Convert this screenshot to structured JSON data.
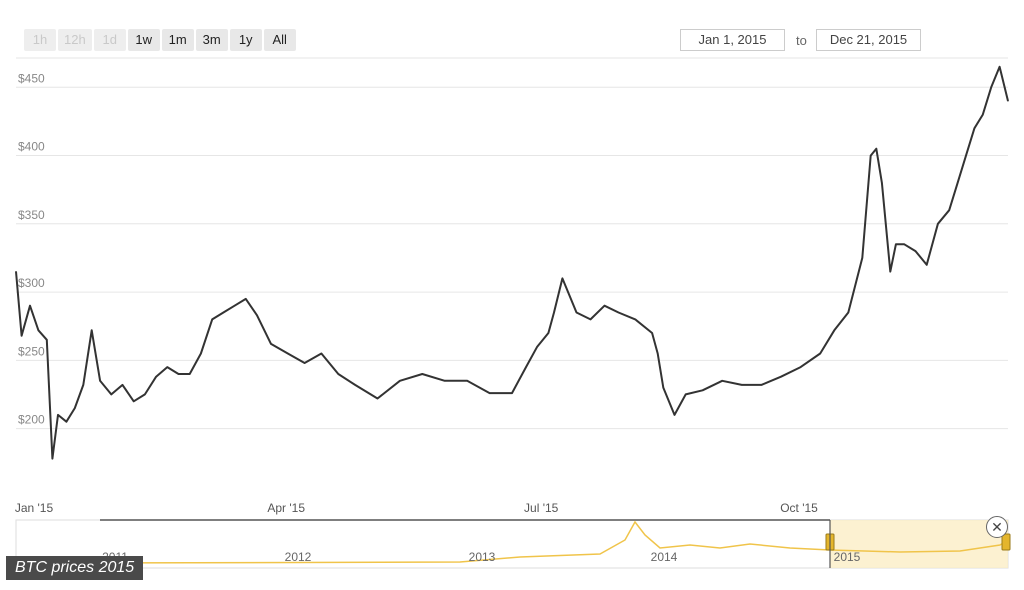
{
  "range_selector": {
    "buttons": [
      {
        "label": "1h",
        "enabled": false
      },
      {
        "label": "12h",
        "enabled": false
      },
      {
        "label": "1d",
        "enabled": false
      },
      {
        "label": "1w",
        "enabled": true
      },
      {
        "label": "1m",
        "enabled": true
      },
      {
        "label": "3m",
        "enabled": true
      },
      {
        "label": "1y",
        "enabled": true
      },
      {
        "label": "All",
        "enabled": true
      }
    ],
    "from_date": "Jan 1, 2015",
    "to_label": "to",
    "to_date": "Dec 21, 2015"
  },
  "caption": "BTC prices 2015",
  "close_icon": "close-circle-icon",
  "colors": {
    "line": "#333333",
    "navigator": "#f0c44a",
    "navigator_fill": "#fbeec6",
    "grid": "#e6e6e6"
  },
  "chart_data": {
    "type": "line",
    "title": "",
    "xlabel": "",
    "ylabel": "",
    "x_range": [
      "2015-01-01",
      "2015-12-21"
    ],
    "ylim": [
      155,
      470
    ],
    "y_ticks": [
      200,
      250,
      300,
      350,
      400,
      450
    ],
    "y_tick_labels": [
      "$200",
      "$250",
      "$300",
      "$350",
      "$400",
      "$450"
    ],
    "x_ticks": [
      "2015-01-01",
      "2015-04-01",
      "2015-07-01",
      "2015-10-01"
    ],
    "x_tick_labels": [
      "Jan '15",
      "Apr '15",
      "Jul '15",
      "Oct '15"
    ],
    "grid": true,
    "series": [
      {
        "x": [
          "2015-01-01",
          "2015-01-03",
          "2015-01-06",
          "2015-01-09",
          "2015-01-12",
          "2015-01-14",
          "2015-01-16",
          "2015-01-19",
          "2015-01-22",
          "2015-01-25",
          "2015-01-28",
          "2015-01-31",
          "2015-02-04",
          "2015-02-08",
          "2015-02-12",
          "2015-02-16",
          "2015-02-20",
          "2015-02-24",
          "2015-02-28",
          "2015-03-04",
          "2015-03-08",
          "2015-03-12",
          "2015-03-16",
          "2015-03-20",
          "2015-03-24",
          "2015-03-28",
          "2015-04-02",
          "2015-04-08",
          "2015-04-14",
          "2015-04-20",
          "2015-04-26",
          "2015-05-02",
          "2015-05-10",
          "2015-05-18",
          "2015-05-26",
          "2015-06-03",
          "2015-06-11",
          "2015-06-19",
          "2015-06-27",
          "2015-07-02",
          "2015-07-06",
          "2015-07-10",
          "2015-07-12",
          "2015-07-15",
          "2015-07-20",
          "2015-07-25",
          "2015-07-30",
          "2015-08-04",
          "2015-08-10",
          "2015-08-16",
          "2015-08-18",
          "2015-08-20",
          "2015-08-24",
          "2015-08-28",
          "2015-09-03",
          "2015-09-10",
          "2015-09-17",
          "2015-09-24",
          "2015-10-01",
          "2015-10-08",
          "2015-10-15",
          "2015-10-20",
          "2015-10-25",
          "2015-10-30",
          "2015-11-02",
          "2015-11-04",
          "2015-11-06",
          "2015-11-09",
          "2015-11-11",
          "2015-11-14",
          "2015-11-18",
          "2015-11-22",
          "2015-11-26",
          "2015-11-30",
          "2015-12-03",
          "2015-12-06",
          "2015-12-09",
          "2015-12-12",
          "2015-12-15",
          "2015-12-18",
          "2015-12-21"
        ],
        "values": [
          315,
          268,
          290,
          272,
          265,
          178,
          210,
          205,
          215,
          232,
          272,
          235,
          225,
          232,
          220,
          225,
          238,
          245,
          240,
          240,
          255,
          280,
          285,
          290,
          295,
          283,
          262,
          255,
          248,
          255,
          240,
          232,
          222,
          235,
          240,
          235,
          235,
          226,
          226,
          245,
          260,
          270,
          285,
          310,
          285,
          280,
          290,
          285,
          280,
          270,
          255,
          230,
          210,
          225,
          228,
          235,
          232,
          232,
          238,
          245,
          255,
          272,
          285,
          325,
          400,
          405,
          380,
          315,
          335,
          335,
          330,
          320,
          350,
          360,
          380,
          400,
          420,
          430,
          450,
          465,
          440
        ]
      }
    ]
  },
  "navigator": {
    "year_labels": [
      "2011",
      "2012",
      "2013",
      "2014",
      "2015"
    ]
  }
}
